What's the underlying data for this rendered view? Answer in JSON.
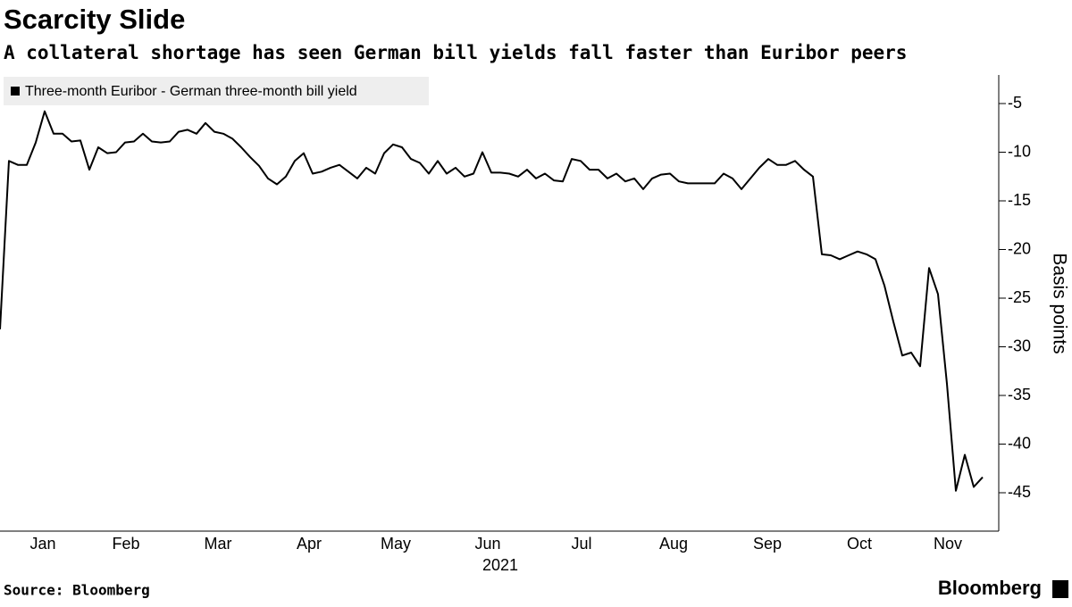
{
  "chart_data": {
    "type": "line",
    "title": "Scarcity Slide",
    "subtitle": "A collateral shortage has seen German bill yields fall faster than Euribor peers",
    "y_axis_label": "Basis points",
    "x_axis_label": "2021",
    "source": "Source: Bloomberg",
    "brand": "Bloomberg",
    "legend_position": "upper left",
    "xlim": [
      0,
      111.8
    ],
    "xticks": [
      {
        "value": 4.8,
        "label": "Jan"
      },
      {
        "value": 14.1,
        "label": "Feb"
      },
      {
        "value": 24.4,
        "label": "Mar"
      },
      {
        "value": 34.6,
        "label": "Apr"
      },
      {
        "value": 44.3,
        "label": "May"
      },
      {
        "value": 54.6,
        "label": "Jun"
      },
      {
        "value": 65.1,
        "label": "Jul"
      },
      {
        "value": 75.4,
        "label": "Aug"
      },
      {
        "value": 85.9,
        "label": "Sep"
      },
      {
        "value": 96.2,
        "label": "Oct"
      },
      {
        "value": 106.1,
        "label": "Nov"
      }
    ],
    "ylim": [
      -49,
      -2
    ],
    "yticks": [
      -5,
      -10,
      -15,
      -20,
      -25,
      -30,
      -35,
      -40,
      -45
    ],
    "series": [
      {
        "name": "Three-month Euribor - German three-month bill yield",
        "color": "#000000",
        "values": [
          -28.2,
          -10.9,
          -11.3,
          -11.3,
          -9.0,
          -5.8,
          -8.1,
          -8.1,
          -8.9,
          -8.8,
          -11.8,
          -9.5,
          -10.1,
          -10.0,
          -9.0,
          -8.9,
          -8.1,
          -8.9,
          -9.0,
          -8.9,
          -7.9,
          -7.7,
          -8.1,
          -7.0,
          -7.9,
          -8.1,
          -8.6,
          -9.5,
          -10.5,
          -11.4,
          -12.7,
          -13.3,
          -12.5,
          -10.9,
          -10.1,
          -12.2,
          -12.0,
          -11.6,
          -11.3,
          -12.0,
          -12.7,
          -11.6,
          -12.2,
          -10.1,
          -9.2,
          -9.5,
          -10.7,
          -11.1,
          -12.2,
          -10.9,
          -12.2,
          -11.6,
          -12.5,
          -12.2,
          -10.0,
          -12.1,
          -12.1,
          -12.2,
          -12.5,
          -11.8,
          -12.7,
          -12.2,
          -12.9,
          -13.0,
          -10.7,
          -10.9,
          -11.8,
          -11.8,
          -12.7,
          -12.2,
          -13.0,
          -12.7,
          -13.8,
          -12.7,
          -12.3,
          -12.2,
          -13.0,
          -13.2,
          -13.2,
          -13.2,
          -13.2,
          -12.2,
          -12.7,
          -13.8,
          -12.7,
          -11.6,
          -10.7,
          -11.3,
          -11.3,
          -10.9,
          -11.8,
          -12.5,
          -20.5,
          -20.6,
          -21.0,
          -20.6,
          -20.2,
          -20.5,
          -21.0,
          -23.7,
          -27.4,
          -30.9,
          -30.6,
          -32.0,
          -21.9,
          -24.6,
          -33.8,
          -44.8,
          -41.1,
          -44.4,
          -43.4
        ]
      }
    ]
  }
}
